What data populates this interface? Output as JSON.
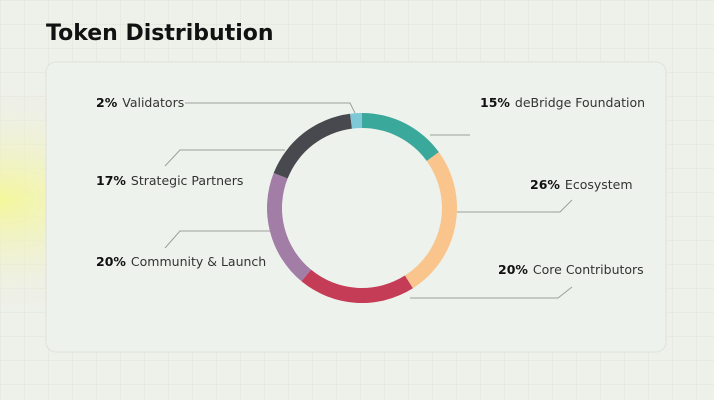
{
  "chart_data": {
    "type": "donut",
    "title": "Token Distribution",
    "categories": [
      "deBridge Foundation",
      "Ecosystem",
      "Core Contributors",
      "Community & Launch",
      "Strategic Partners",
      "Validators"
    ],
    "values": [
      15,
      26,
      20,
      20,
      17,
      2
    ],
    "value_labels": [
      "15%",
      "26%",
      "20%",
      "20%",
      "17%",
      "2%"
    ],
    "colors": [
      "#3aa89a",
      "#f9c58c",
      "#c43c55",
      "#a27ea6",
      "#48494e",
      "#7ec8d8"
    ]
  }
}
